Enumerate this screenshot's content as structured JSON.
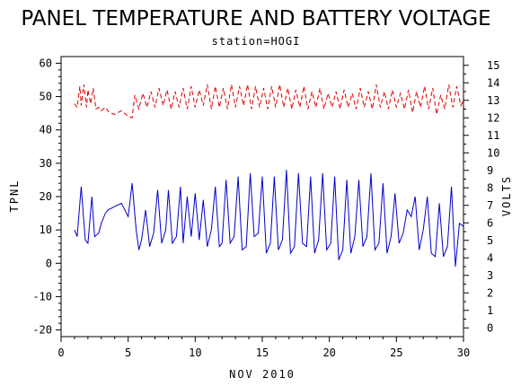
{
  "chart_data": {
    "type": "line",
    "title": "PANEL TEMPERATURE AND BATTERY VOLTAGE",
    "subtitle": "station=HOGI",
    "xlabel": "NOV 2010",
    "ylabel_left": "TPNL",
    "ylabel_right": "VOLTS",
    "xlim": [
      0,
      30
    ],
    "ylim_left": [
      -22,
      62
    ],
    "ylim_right": [
      -0.5,
      15.5
    ],
    "x_ticks": [
      0,
      5,
      10,
      15,
      20,
      25,
      30
    ],
    "y_ticks_left": [
      -20,
      -10,
      0,
      10,
      20,
      30,
      40,
      50,
      60
    ],
    "y_ticks_right": [
      0,
      1,
      2,
      3,
      4,
      5,
      6,
      7,
      8,
      9,
      10,
      11,
      12,
      13,
      14,
      15
    ],
    "grid": false,
    "colors": {
      "temperature": "#0000cc",
      "voltage": "#dd0000"
    },
    "series": [
      {
        "axis": "left",
        "style": "solid",
        "x": [
          1.0,
          1.2,
          1.5,
          1.8,
          2.0,
          2.3,
          2.5,
          2.8,
          3.0,
          3.3,
          3.5,
          4.0,
          4.5,
          5.0,
          5.3,
          5.6,
          5.8,
          6.0,
          6.3,
          6.6,
          6.9,
          7.2,
          7.5,
          7.8,
          8.0,
          8.3,
          8.6,
          8.9,
          9.1,
          9.4,
          9.7,
          10.0,
          10.3,
          10.6,
          10.9,
          11.2,
          11.5,
          11.8,
          12.0,
          12.3,
          12.6,
          12.9,
          13.2,
          13.5,
          13.8,
          14.1,
          14.4,
          14.7,
          15.0,
          15.3,
          15.6,
          15.9,
          16.2,
          16.5,
          16.8,
          17.1,
          17.4,
          17.7,
          18.0,
          18.3,
          18.6,
          18.9,
          19.2,
          19.5,
          19.8,
          20.1,
          20.4,
          20.7,
          21.0,
          21.3,
          21.6,
          21.9,
          22.2,
          22.5,
          22.8,
          23.1,
          23.4,
          23.7,
          24.0,
          24.3,
          24.6,
          24.9,
          25.2,
          25.5,
          25.8,
          26.1,
          26.4,
          26.7,
          27.0,
          27.3,
          27.6,
          27.9,
          28.2,
          28.5,
          28.8,
          29.1,
          29.4,
          29.7,
          30.0
        ],
        "values": [
          10,
          8,
          23,
          7,
          6,
          20,
          8,
          9,
          12,
          15,
          16,
          17,
          18,
          14,
          24,
          10,
          4,
          7,
          16,
          5,
          9,
          22,
          6,
          10,
          22,
          6,
          8,
          23,
          6,
          20,
          8,
          21,
          7,
          19,
          5,
          10,
          23,
          5,
          6,
          25,
          6,
          8,
          26,
          4,
          5,
          27,
          8,
          9,
          26,
          3,
          6,
          26,
          4,
          7,
          28,
          3,
          5,
          27,
          6,
          5,
          26,
          3,
          7,
          27,
          4,
          6,
          26,
          1,
          4,
          25,
          3,
          8,
          25,
          5,
          8,
          27,
          4,
          6,
          24,
          3,
          8,
          21,
          6,
          9,
          16,
          14,
          20,
          4,
          10,
          20,
          3,
          2,
          18,
          2,
          5,
          23,
          -1,
          12,
          11
        ]
      },
      {
        "axis": "right",
        "style": "dashed",
        "x": [
          1.0,
          1.2,
          1.4,
          1.5,
          1.7,
          1.9,
          2.0,
          2.2,
          2.4,
          2.6,
          2.8,
          3.0,
          3.3,
          3.6,
          4.0,
          4.5,
          5.0,
          5.3,
          5.5,
          5.8,
          6.1,
          6.4,
          6.7,
          7.0,
          7.3,
          7.6,
          7.9,
          8.2,
          8.5,
          8.8,
          9.1,
          9.4,
          9.7,
          10.0,
          10.3,
          10.6,
          10.9,
          11.2,
          11.5,
          11.8,
          12.1,
          12.4,
          12.7,
          13.0,
          13.3,
          13.6,
          13.9,
          14.2,
          14.5,
          14.8,
          15.1,
          15.4,
          15.7,
          16.0,
          16.3,
          16.6,
          16.9,
          17.2,
          17.5,
          17.8,
          18.1,
          18.4,
          18.7,
          19.0,
          19.3,
          19.6,
          19.9,
          20.2,
          20.5,
          20.8,
          21.1,
          21.4,
          21.7,
          22.0,
          22.3,
          22.6,
          22.9,
          23.2,
          23.5,
          23.8,
          24.1,
          24.4,
          24.7,
          25.0,
          25.3,
          25.6,
          25.9,
          26.2,
          26.5,
          26.8,
          27.1,
          27.4,
          27.7,
          28.0,
          28.3,
          28.6,
          28.9,
          29.2,
          29.5,
          29.8,
          30.0
        ],
        "values": [
          12.8,
          12.6,
          13.8,
          12.7,
          13.9,
          12.6,
          13.6,
          12.8,
          13.7,
          12.5,
          12.6,
          12.4,
          12.6,
          12.3,
          12.2,
          12.4,
          12.1,
          12.0,
          13.3,
          12.5,
          13.4,
          12.6,
          13.5,
          12.6,
          13.7,
          12.7,
          13.6,
          12.5,
          13.5,
          12.6,
          13.7,
          12.5,
          13.8,
          12.6,
          13.6,
          12.7,
          13.9,
          12.5,
          13.8,
          12.6,
          13.7,
          12.5,
          13.9,
          12.6,
          13.8,
          12.7,
          13.9,
          12.5,
          13.8,
          12.6,
          13.7,
          12.5,
          13.8,
          12.6,
          13.9,
          12.6,
          13.7,
          12.5,
          13.6,
          12.6,
          13.8,
          12.5,
          13.5,
          12.6,
          13.7,
          12.5,
          13.4,
          12.6,
          13.5,
          12.5,
          13.6,
          12.6,
          13.4,
          12.5,
          13.7,
          12.6,
          13.5,
          12.5,
          13.9,
          12.6,
          13.5,
          12.5,
          13.6,
          12.6,
          13.4,
          12.5,
          13.6,
          12.3,
          13.5,
          12.6,
          13.8,
          12.5,
          13.7,
          12.2,
          13.3,
          12.5,
          13.9,
          12.6,
          13.8,
          12.7,
          13.0
        ]
      }
    ]
  }
}
